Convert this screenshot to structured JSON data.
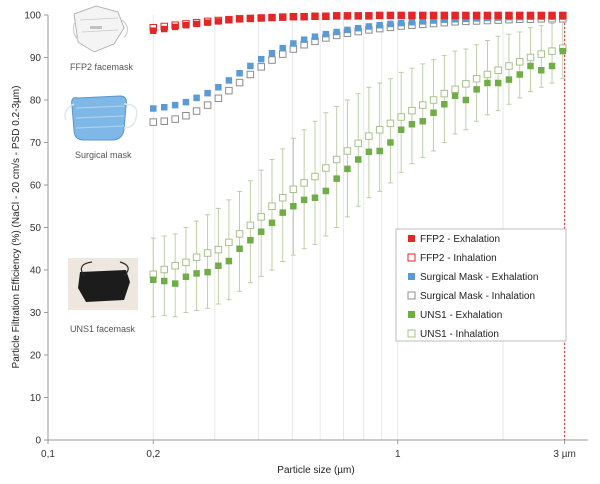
{
  "chart_data": {
    "type": "scatter",
    "xscale": "log",
    "xlim": [
      0.1,
      3.5
    ],
    "ylim": [
      0,
      100
    ],
    "xlabel": "Particle size (µm)",
    "ylabel": "Particle Filtration Efficiency (%) (NaCl - 20 cm/s - PSD 0.2-3µm)",
    "x_ticks": [
      {
        "value": 0.1,
        "label": "0,1"
      },
      {
        "value": 0.2,
        "label": "0,2"
      },
      {
        "value": 1,
        "label": "1"
      },
      {
        "value": 3,
        "label": "3 µm"
      }
    ],
    "y_ticks": [
      0,
      10,
      20,
      30,
      40,
      50,
      60,
      70,
      80,
      90,
      100
    ],
    "grid": "vertical log gridlines",
    "reference_line": {
      "x": 3,
      "color": "#e03030"
    },
    "legend_position": "bottom-right",
    "x": [
      0.2,
      0.215,
      0.231,
      0.248,
      0.266,
      0.286,
      0.307,
      0.329,
      0.353,
      0.379,
      0.407,
      0.437,
      0.469,
      0.503,
      0.54,
      0.58,
      0.623,
      0.669,
      0.718,
      0.771,
      0.827,
      0.888,
      0.953,
      1.023,
      1.098,
      1.179,
      1.266,
      1.359,
      1.459,
      1.566,
      1.681,
      1.805,
      1.937,
      2.08,
      2.233,
      2.397,
      2.573,
      2.762,
      2.965
    ],
    "series": [
      {
        "name": "FFP2 - Exhalation",
        "marker": "filled",
        "color": "#e32626",
        "values": [
          96.3,
          96.7,
          97.2,
          97.6,
          97.9,
          98.2,
          98.5,
          98.8,
          99.0,
          99.2,
          99.3,
          99.4,
          99.5,
          99.6,
          99.6,
          99.7,
          99.7,
          99.8,
          99.8,
          99.8,
          99.8,
          99.9,
          99.9,
          99.9,
          99.9,
          99.9,
          99.9,
          99.9,
          99.9,
          99.9,
          99.9,
          99.9,
          99.9,
          99.9,
          99.9,
          99.9,
          99.9,
          99.9,
          99.9
        ]
      },
      {
        "name": "FFP2 - Inhalation",
        "marker": "hollow",
        "color": "#e32626",
        "values": [
          97.0,
          97.3,
          97.6,
          97.9,
          98.2,
          98.5,
          98.7,
          98.9,
          99.1,
          99.2,
          99.3,
          99.4,
          99.5,
          99.6,
          99.6,
          99.7,
          99.7,
          99.8,
          99.8,
          99.8,
          99.8,
          99.9,
          99.9,
          99.9,
          99.9,
          99.9,
          99.9,
          99.9,
          99.9,
          99.9,
          99.9,
          99.9,
          99.9,
          99.9,
          99.9,
          99.9,
          99.9,
          99.9,
          99.9
        ]
      },
      {
        "name": "Surgical Mask - Exhalation",
        "marker": "filled",
        "color": "#5b9bd5",
        "values": [
          78.0,
          78.3,
          78.8,
          79.5,
          80.5,
          81.6,
          83.0,
          84.6,
          86.3,
          88.0,
          89.6,
          91.0,
          92.2,
          93.3,
          94.2,
          94.9,
          95.5,
          96.0,
          96.5,
          96.9,
          97.3,
          97.6,
          97.9,
          98.1,
          98.3,
          98.5,
          98.7,
          98.9,
          99.0,
          99.1,
          99.2,
          99.3,
          99.4,
          99.5,
          99.5,
          99.6,
          99.6,
          99.6,
          99.6
        ]
      },
      {
        "name": "Surgical Mask - Inhalation",
        "marker": "hollow",
        "color": "#8c8c8c",
        "values": [
          74.8,
          75.0,
          75.5,
          76.3,
          77.4,
          78.8,
          80.4,
          82.2,
          84.1,
          86.0,
          87.8,
          89.4,
          90.8,
          92.0,
          93.0,
          93.8,
          94.6,
          95.2,
          95.7,
          96.1,
          96.5,
          96.8,
          97.1,
          97.4,
          97.6,
          97.8,
          98.0,
          98.2,
          98.4,
          98.5,
          98.6,
          98.7,
          98.8,
          98.9,
          99.0,
          99.0,
          99.1,
          99.1,
          99.1
        ]
      },
      {
        "name": "UNS1 - Exhalation",
        "marker": "filled",
        "color": "#70ad47",
        "values": [
          37.7,
          37.4,
          36.8,
          38.4,
          39.2,
          39.5,
          41.0,
          42.1,
          45.0,
          47.0,
          49.0,
          51.1,
          53.5,
          55.0,
          56.5,
          57.0,
          58.6,
          61.5,
          63.8,
          66.0,
          67.8,
          68.0,
          70.0,
          73.0,
          74.3,
          75.0,
          77.0,
          79.0,
          81.0,
          80.0,
          82.5,
          84.0,
          84.0,
          84.8,
          86.0,
          88.0,
          87.0,
          88.0,
          91.5
        ]
      },
      {
        "name": "UNS1 - Inhalation",
        "marker": "hollow",
        "color": "#a9c08a",
        "values": [
          39.0,
          40.1,
          41.0,
          41.8,
          43.0,
          44.0,
          44.8,
          46.5,
          48.5,
          50.5,
          52.5,
          55.0,
          57.0,
          59.0,
          60.5,
          62.0,
          64.0,
          66.0,
          68.0,
          69.8,
          71.5,
          73.0,
          74.5,
          76.0,
          77.5,
          78.8,
          80.0,
          81.5,
          82.5,
          83.8,
          85.0,
          86.0,
          87.0,
          88.0,
          89.0,
          90.0,
          90.8,
          91.5,
          92.2
        ]
      }
    ],
    "error_bars": {
      "series": [
        "UNS1 - Exhalation",
        "UNS1 - Inhalation"
      ],
      "low": [
        29.0,
        29.3,
        29.0,
        30.0,
        30.5,
        31.0,
        32.0,
        33.0,
        35.0,
        37.0,
        38.5,
        40.0,
        42.0,
        43.5,
        45.0,
        46.0,
        48.0,
        50.0,
        52.5,
        55.0,
        57.0,
        58.5,
        60.5,
        63.0,
        65.0,
        66.5,
        68.0,
        70.0,
        72.0,
        73.0,
        75.0,
        76.5,
        77.5,
        79.0,
        80.5,
        82.0,
        83.0,
        84.0,
        85.0
      ],
      "high": [
        47.5,
        48.0,
        48.5,
        50.0,
        51.5,
        53.0,
        54.5,
        56.5,
        58.5,
        61.0,
        63.5,
        66.0,
        68.5,
        71.0,
        73.0,
        75.0,
        77.0,
        78.5,
        80.0,
        81.5,
        83.0,
        84.0,
        85.0,
        86.5,
        87.5,
        88.5,
        89.5,
        90.5,
        91.5,
        92.0,
        93.0,
        94.0,
        95.0,
        95.5,
        96.0,
        97.0,
        97.5,
        98.0,
        98.5
      ]
    }
  },
  "mask_labels": {
    "ffp2": "FFP2 facemask",
    "surgical": "Surgical mask",
    "uns1": "UNS1 facemask"
  }
}
